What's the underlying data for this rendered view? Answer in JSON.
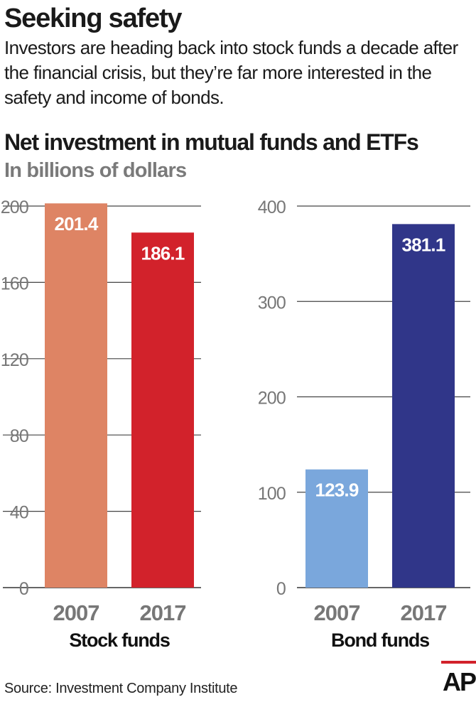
{
  "headline": "Seeking safety",
  "intro": "Investors are heading back into stock funds a decade after the financial crisis, but they’re far more interested in the safety and income of bonds.",
  "chart_title": "Net investment in mutual funds and ETFs",
  "chart_subtitle": "In billions of dollars",
  "source": "Source: Investment Company Institute",
  "logo_text": "AP",
  "chart_data": [
    {
      "type": "bar",
      "title": "",
      "xlabel": "Stock funds",
      "ylabel": "",
      "categories": [
        "2007",
        "2017"
      ],
      "values": [
        201.4,
        186.1
      ],
      "value_labels": [
        "201.4",
        "186.1"
      ],
      "colors": [
        "#de8464",
        "#d2222b"
      ],
      "ylim": [
        0,
        200
      ],
      "yticks": [
        0,
        40,
        80,
        120,
        160,
        200
      ],
      "ytick_labels": [
        "0",
        "40",
        "80",
        "120",
        "160",
        "200"
      ],
      "grid": true
    },
    {
      "type": "bar",
      "title": "",
      "xlabel": "Bond funds",
      "ylabel": "",
      "categories": [
        "2007",
        "2017"
      ],
      "values": [
        123.9,
        381.1
      ],
      "value_labels": [
        "123.9",
        "381.1"
      ],
      "colors": [
        "#7aa7dc",
        "#303689"
      ],
      "ylim": [
        0,
        400
      ],
      "yticks": [
        0,
        100,
        200,
        300,
        400
      ],
      "ytick_labels": [
        "0",
        "100",
        "200",
        "300",
        "400"
      ],
      "grid": true
    }
  ]
}
